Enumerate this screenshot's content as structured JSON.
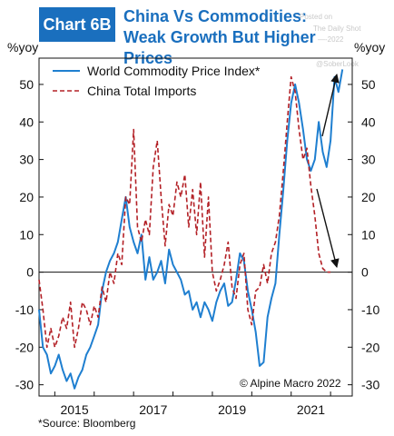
{
  "header": {
    "tag": "Chart 6B",
    "title_line1": "China Vs Commodities:",
    "title_line2": "Weak Growth But Higher Prices"
  },
  "watermark": {
    "line1": "Posted on",
    "line2": "The Daily Shot",
    "line3": "—-2022",
    "handle": "@SoberLook"
  },
  "colors": {
    "accent": "#1a6fbe",
    "commodity": "#1f7fd0",
    "imports": "#b32026"
  },
  "footer": {
    "source": "*Source: Bloomberg"
  },
  "chart_data": {
    "type": "line",
    "title": "",
    "ylabel_left": "%yoy",
    "ylabel_right": "%yoy",
    "ylim": [
      -33,
      57
    ],
    "yticks": [
      -30,
      -20,
      -10,
      0,
      10,
      20,
      30,
      40,
      50
    ],
    "xlim": [
      2014.6,
      2022.55
    ],
    "xticks": [
      2015,
      2017,
      2019,
      2021
    ],
    "copyright": "© Alpine Macro 2022",
    "legend_position": "top-left",
    "series": [
      {
        "name": "World Commodity Price Index*",
        "style": "solid",
        "x": [
          2014.6,
          2014.7,
          2014.8,
          2014.9,
          2015.0,
          2015.1,
          2015.2,
          2015.3,
          2015.4,
          2015.5,
          2015.6,
          2015.7,
          2015.8,
          2015.9,
          2016.0,
          2016.1,
          2016.2,
          2016.3,
          2016.4,
          2016.5,
          2016.6,
          2016.7,
          2016.8,
          2016.9,
          2017.0,
          2017.1,
          2017.2,
          2017.3,
          2017.4,
          2017.5,
          2017.6,
          2017.7,
          2017.8,
          2017.9,
          2018.0,
          2018.1,
          2018.2,
          2018.3,
          2018.4,
          2018.5,
          2018.6,
          2018.7,
          2018.8,
          2018.9,
          2019.0,
          2019.1,
          2019.2,
          2019.3,
          2019.4,
          2019.5,
          2019.6,
          2019.7,
          2019.8,
          2019.9,
          2020.0,
          2020.1,
          2020.2,
          2020.3,
          2020.4,
          2020.5,
          2020.6,
          2020.7,
          2020.8,
          2020.9,
          2021.0,
          2021.1,
          2021.2,
          2021.3,
          2021.4,
          2021.5,
          2021.6,
          2021.7,
          2021.8,
          2021.9,
          2022.0,
          2022.1,
          2022.2,
          2022.3
        ],
        "values": [
          -10,
          -20,
          -22,
          -27,
          -25,
          -22,
          -26,
          -29,
          -27,
          -31,
          -28,
          -26,
          -22,
          -20,
          -17,
          -14,
          -5,
          0,
          3,
          5,
          8,
          14,
          20,
          12,
          8,
          5,
          10,
          -2,
          4,
          -2,
          0,
          3,
          -3,
          6,
          2,
          0,
          -2,
          -6,
          -5,
          -10,
          -8,
          -12,
          -8,
          -10,
          -13,
          -8,
          -5,
          -3,
          -9,
          -8,
          -2,
          5,
          3,
          -5,
          -10,
          -16,
          -25,
          -24,
          -12,
          -7,
          -3,
          10,
          22,
          35,
          45,
          50,
          45,
          38,
          30,
          27,
          30,
          40,
          32,
          28,
          35,
          52,
          48,
          54
        ]
      },
      {
        "name": "China Total Imports",
        "style": "dashed",
        "x": [
          2014.6,
          2014.7,
          2014.8,
          2014.9,
          2015.0,
          2015.1,
          2015.2,
          2015.3,
          2015.4,
          2015.5,
          2015.6,
          2015.7,
          2015.8,
          2015.9,
          2016.0,
          2016.1,
          2016.2,
          2016.3,
          2016.4,
          2016.5,
          2016.6,
          2016.7,
          2016.8,
          2016.9,
          2017.0,
          2017.1,
          2017.2,
          2017.3,
          2017.4,
          2017.5,
          2017.6,
          2017.7,
          2017.8,
          2017.9,
          2018.0,
          2018.1,
          2018.2,
          2018.3,
          2018.4,
          2018.5,
          2018.6,
          2018.7,
          2018.8,
          2018.9,
          2019.0,
          2019.1,
          2019.2,
          2019.3,
          2019.4,
          2019.5,
          2019.6,
          2019.7,
          2019.8,
          2019.9,
          2020.0,
          2020.1,
          2020.2,
          2020.3,
          2020.4,
          2020.5,
          2020.6,
          2020.7,
          2020.8,
          2020.9,
          2021.0,
          2021.1,
          2021.2,
          2021.3,
          2021.4,
          2021.5,
          2021.6,
          2021.7,
          2021.8,
          2021.9,
          2022.0
        ],
        "values": [
          -2,
          -10,
          -20,
          -15,
          -20,
          -17,
          -12,
          -15,
          -8,
          -20,
          -15,
          -8,
          -10,
          -14,
          -9,
          -12,
          -4,
          -8,
          0,
          -3,
          5,
          2,
          20,
          18,
          38,
          12,
          8,
          14,
          10,
          28,
          35,
          20,
          7,
          18,
          15,
          24,
          20,
          26,
          12,
          22,
          10,
          24,
          4,
          20,
          0,
          -5,
          -2,
          2,
          8,
          -4,
          -7,
          2,
          5,
          -10,
          -14,
          -5,
          -4,
          2,
          -3,
          5,
          8,
          15,
          27,
          40,
          52,
          48,
          38,
          30,
          33,
          23,
          15,
          5,
          1,
          0,
          0
        ]
      }
    ]
  }
}
